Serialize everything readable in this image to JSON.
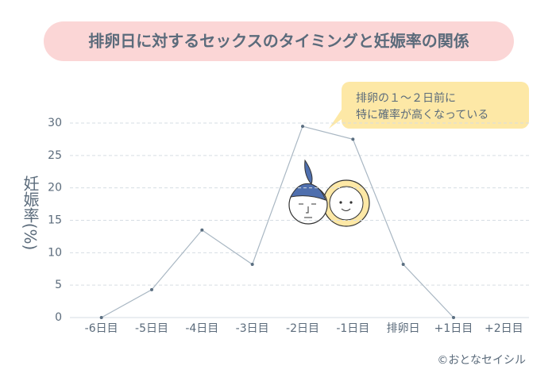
{
  "chart_data": {
    "type": "line",
    "title": "排卵日に対するセックスのタイミングと妊娠率の関係",
    "y_label": "妊娠率(%)",
    "annotation": [
      "排卵の１～２日前に",
      "特に確率が高くなっている"
    ],
    "credit": "©おとなセイシル",
    "categories": [
      "-6日目",
      "-5日目",
      "-4日目",
      "-3日目",
      "-2日目",
      "-1日目",
      "排卵日",
      "+1日目",
      "+2日目"
    ],
    "series": [
      {
        "color": "#a9b7c3",
        "marker_color": "#5a6e80",
        "values": [
          0,
          4.3,
          13.5,
          8.2,
          29.5,
          27.5,
          8.2,
          0,
          null
        ]
      }
    ],
    "ylim": [
      0,
      30
    ],
    "yticks": [
      0,
      5,
      10,
      15,
      20,
      25,
      30
    ],
    "grid": true
  }
}
